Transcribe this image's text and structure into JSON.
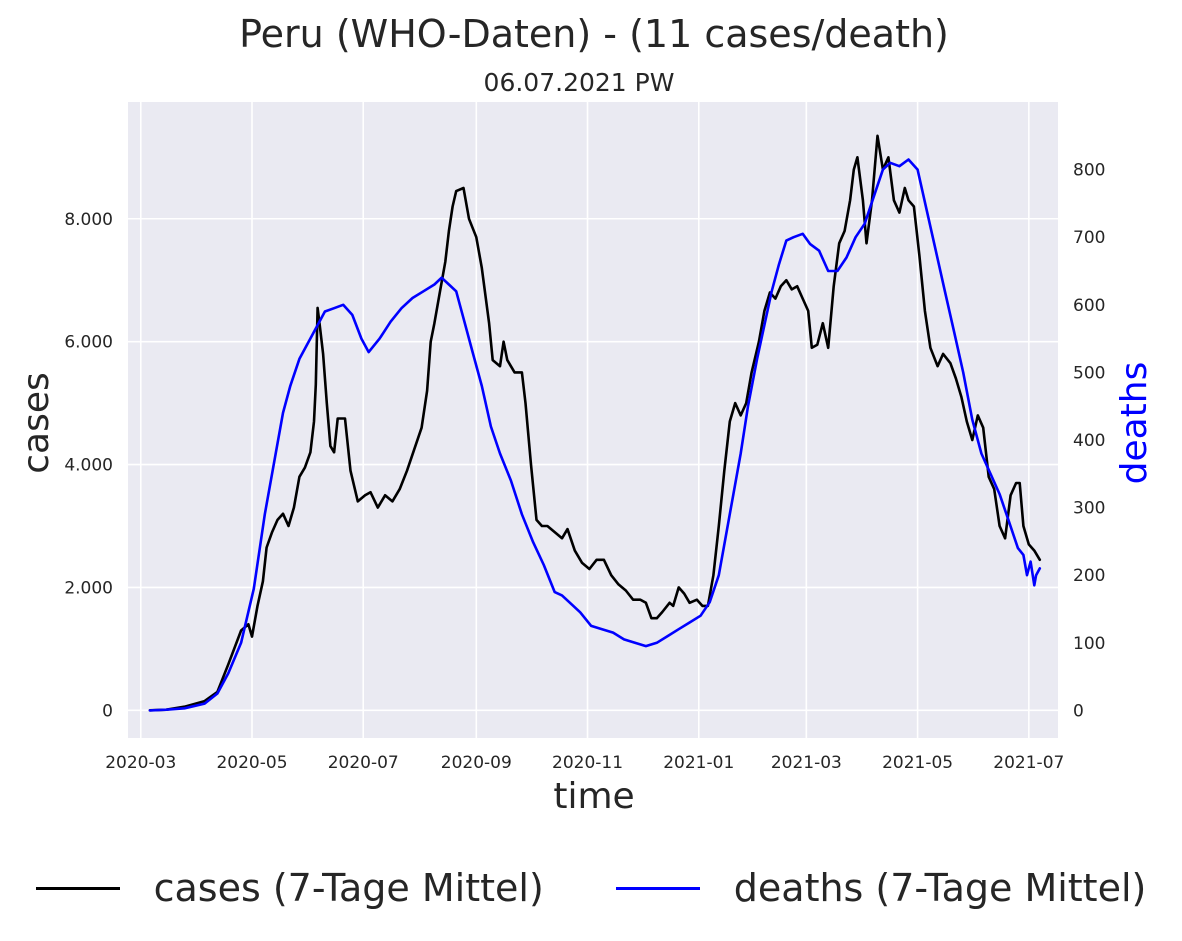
{
  "chart_data": {
    "type": "line",
    "title": "Peru (WHO-Daten) - (11 cases/death)",
    "subtitle": "06.07.2021 PW",
    "xlabel": "time",
    "ylabel_left": "cases",
    "ylabel_right": "deaths",
    "x_tick_labels": [
      "2020-03",
      "2020-05",
      "2020-07",
      "2020-09",
      "2020-11",
      "2021-01",
      "2021-03",
      "2021-05",
      "2021-07"
    ],
    "y_left_tick_labels": [
      "0",
      "2.000",
      "4.000",
      "6.000",
      "8.000"
    ],
    "y_left_ticks": [
      0,
      2000,
      4000,
      6000,
      8000
    ],
    "y_left_lim": [
      -450,
      9900
    ],
    "y_right_tick_labels": [
      "0",
      "100",
      "200",
      "300",
      "400",
      "500",
      "600",
      "700",
      "800"
    ],
    "y_right_ticks": [
      0,
      100,
      200,
      300,
      400,
      500,
      600,
      700,
      800
    ],
    "y_right_lim": [
      -40.9,
      900
    ],
    "x_lim": [
      "2020-02-23",
      "2021-07-17"
    ],
    "grid": true,
    "legend_position": "bottom-center",
    "series": [
      {
        "name": "cases (7-Tage Mittel)",
        "color": "#000000",
        "axis": "left",
        "points": [
          [
            "2020-03-06",
            0
          ],
          [
            "2020-03-15",
            10
          ],
          [
            "2020-03-25",
            60
          ],
          [
            "2020-04-05",
            150
          ],
          [
            "2020-04-12",
            300
          ],
          [
            "2020-04-18",
            750
          ],
          [
            "2020-04-25",
            1300
          ],
          [
            "2020-04-29",
            1400
          ],
          [
            "2020-05-01",
            1200
          ],
          [
            "2020-05-04",
            1700
          ],
          [
            "2020-05-07",
            2100
          ],
          [
            "2020-05-09",
            2650
          ],
          [
            "2020-05-12",
            2900
          ],
          [
            "2020-05-15",
            3100
          ],
          [
            "2020-05-18",
            3200
          ],
          [
            "2020-05-21",
            3000
          ],
          [
            "2020-05-24",
            3300
          ],
          [
            "2020-05-27",
            3800
          ],
          [
            "2020-05-30",
            3950
          ],
          [
            "2020-06-02",
            4200
          ],
          [
            "2020-06-04",
            4700
          ],
          [
            "2020-06-05",
            5300
          ],
          [
            "2020-06-06",
            6550
          ],
          [
            "2020-06-07",
            6300
          ],
          [
            "2020-06-09",
            5800
          ],
          [
            "2020-06-11",
            5000
          ],
          [
            "2020-06-13",
            4300
          ],
          [
            "2020-06-15",
            4200
          ],
          [
            "2020-06-17",
            4750
          ],
          [
            "2020-06-21",
            4750
          ],
          [
            "2020-06-24",
            3900
          ],
          [
            "2020-06-28",
            3400
          ],
          [
            "2020-07-02",
            3500
          ],
          [
            "2020-07-05",
            3550
          ],
          [
            "2020-07-09",
            3300
          ],
          [
            "2020-07-13",
            3500
          ],
          [
            "2020-07-17",
            3400
          ],
          [
            "2020-07-21",
            3600
          ],
          [
            "2020-07-25",
            3900
          ],
          [
            "2020-07-29",
            4250
          ],
          [
            "2020-08-02",
            4600
          ],
          [
            "2020-08-05",
            5200
          ],
          [
            "2020-08-07",
            6000
          ],
          [
            "2020-08-09",
            6300
          ],
          [
            "2020-08-12",
            6800
          ],
          [
            "2020-08-15",
            7300
          ],
          [
            "2020-08-17",
            7800
          ],
          [
            "2020-08-19",
            8200
          ],
          [
            "2020-08-21",
            8450
          ],
          [
            "2020-08-25",
            8500
          ],
          [
            "2020-08-28",
            8000
          ],
          [
            "2020-09-01",
            7700
          ],
          [
            "2020-09-04",
            7200
          ],
          [
            "2020-09-08",
            6300
          ],
          [
            "2020-09-10",
            5700
          ],
          [
            "2020-09-14",
            5600
          ],
          [
            "2020-09-16",
            6000
          ],
          [
            "2020-09-18",
            5700
          ],
          [
            "2020-09-22",
            5500
          ],
          [
            "2020-09-26",
            5500
          ],
          [
            "2020-09-28",
            5000
          ],
          [
            "2020-10-01",
            4000
          ],
          [
            "2020-10-04",
            3100
          ],
          [
            "2020-10-07",
            3000
          ],
          [
            "2020-10-10",
            3000
          ],
          [
            "2020-10-14",
            2900
          ],
          [
            "2020-10-18",
            2800
          ],
          [
            "2020-10-21",
            2950
          ],
          [
            "2020-10-25",
            2600
          ],
          [
            "2020-10-29",
            2400
          ],
          [
            "2020-11-02",
            2300
          ],
          [
            "2020-11-06",
            2450
          ],
          [
            "2020-11-10",
            2450
          ],
          [
            "2020-11-14",
            2200
          ],
          [
            "2020-11-18",
            2050
          ],
          [
            "2020-11-22",
            1950
          ],
          [
            "2020-11-26",
            1800
          ],
          [
            "2020-11-30",
            1800
          ],
          [
            "2020-12-03",
            1750
          ],
          [
            "2020-12-06",
            1500
          ],
          [
            "2020-12-09",
            1500
          ],
          [
            "2020-12-12",
            1600
          ],
          [
            "2020-12-16",
            1750
          ],
          [
            "2020-12-18",
            1700
          ],
          [
            "2020-12-21",
            2000
          ],
          [
            "2020-12-24",
            1900
          ],
          [
            "2020-12-27",
            1750
          ],
          [
            "2020-12-31",
            1800
          ],
          [
            "2021-01-03",
            1700
          ],
          [
            "2021-01-06",
            1700
          ],
          [
            "2021-01-09",
            2200
          ],
          [
            "2021-01-12",
            3000
          ],
          [
            "2021-01-15",
            3900
          ],
          [
            "2021-01-18",
            4700
          ],
          [
            "2021-01-21",
            5000
          ],
          [
            "2021-01-24",
            4800
          ],
          [
            "2021-01-27",
            5000
          ],
          [
            "2021-01-30",
            5500
          ],
          [
            "2021-02-03",
            6000
          ],
          [
            "2021-02-06",
            6500
          ],
          [
            "2021-02-09",
            6800
          ],
          [
            "2021-02-12",
            6700
          ],
          [
            "2021-02-15",
            6900
          ],
          [
            "2021-02-18",
            7000
          ],
          [
            "2021-02-21",
            6850
          ],
          [
            "2021-02-24",
            6900
          ],
          [
            "2021-02-27",
            6700
          ],
          [
            "2021-03-02",
            6500
          ],
          [
            "2021-03-04",
            5900
          ],
          [
            "2021-03-07",
            5950
          ],
          [
            "2021-03-10",
            6300
          ],
          [
            "2021-03-13",
            5900
          ],
          [
            "2021-03-16",
            6900
          ],
          [
            "2021-03-19",
            7600
          ],
          [
            "2021-03-22",
            7800
          ],
          [
            "2021-03-25",
            8300
          ],
          [
            "2021-03-27",
            8800
          ],
          [
            "2021-03-29",
            9000
          ],
          [
            "2021-04-01",
            8300
          ],
          [
            "2021-04-03",
            7600
          ],
          [
            "2021-04-06",
            8300
          ],
          [
            "2021-04-09",
            9350
          ],
          [
            "2021-04-12",
            8800
          ],
          [
            "2021-04-15",
            9000
          ],
          [
            "2021-04-18",
            8300
          ],
          [
            "2021-04-21",
            8100
          ],
          [
            "2021-04-24",
            8500
          ],
          [
            "2021-04-26",
            8300
          ],
          [
            "2021-04-29",
            8200
          ],
          [
            "2021-05-02",
            7400
          ],
          [
            "2021-05-05",
            6500
          ],
          [
            "2021-05-08",
            5900
          ],
          [
            "2021-05-12",
            5600
          ],
          [
            "2021-05-15",
            5800
          ],
          [
            "2021-05-19",
            5650
          ],
          [
            "2021-05-22",
            5400
          ],
          [
            "2021-05-25",
            5100
          ],
          [
            "2021-05-28",
            4700
          ],
          [
            "2021-05-31",
            4400
          ],
          [
            "2021-06-03",
            4800
          ],
          [
            "2021-06-06",
            4600
          ],
          [
            "2021-06-09",
            3800
          ],
          [
            "2021-06-12",
            3600
          ],
          [
            "2021-06-15",
            3000
          ],
          [
            "2021-06-18",
            2800
          ],
          [
            "2021-06-21",
            3500
          ],
          [
            "2021-06-24",
            3700
          ],
          [
            "2021-06-26",
            3700
          ],
          [
            "2021-06-28",
            3000
          ],
          [
            "2021-07-01",
            2700
          ],
          [
            "2021-07-04",
            2600
          ],
          [
            "2021-07-07",
            2450
          ]
        ]
      },
      {
        "name": "deaths (7-Tage Mittel)",
        "color": "#0000ff",
        "axis": "right",
        "points": [
          [
            "2020-03-06",
            0
          ],
          [
            "2020-03-15",
            1
          ],
          [
            "2020-03-25",
            3
          ],
          [
            "2020-04-05",
            10
          ],
          [
            "2020-04-12",
            25
          ],
          [
            "2020-04-18",
            55
          ],
          [
            "2020-04-25",
            100
          ],
          [
            "2020-05-02",
            180
          ],
          [
            "2020-05-08",
            290
          ],
          [
            "2020-05-14",
            380
          ],
          [
            "2020-05-18",
            440
          ],
          [
            "2020-05-22",
            480
          ],
          [
            "2020-05-27",
            520
          ],
          [
            "2020-06-01",
            545
          ],
          [
            "2020-06-06",
            570
          ],
          [
            "2020-06-10",
            590
          ],
          [
            "2020-06-15",
            595
          ],
          [
            "2020-06-20",
            600
          ],
          [
            "2020-06-25",
            585
          ],
          [
            "2020-06-30",
            550
          ],
          [
            "2020-07-04",
            530
          ],
          [
            "2020-07-10",
            550
          ],
          [
            "2020-07-16",
            575
          ],
          [
            "2020-07-22",
            595
          ],
          [
            "2020-07-28",
            610
          ],
          [
            "2020-08-03",
            620
          ],
          [
            "2020-08-09",
            630
          ],
          [
            "2020-08-13",
            640
          ],
          [
            "2020-08-17",
            630
          ],
          [
            "2020-08-21",
            620
          ],
          [
            "2020-08-25",
            580
          ],
          [
            "2020-08-30",
            530
          ],
          [
            "2020-09-04",
            480
          ],
          [
            "2020-09-09",
            420
          ],
          [
            "2020-09-14",
            380
          ],
          [
            "2020-09-20",
            340
          ],
          [
            "2020-09-26",
            290
          ],
          [
            "2020-10-02",
            250
          ],
          [
            "2020-10-08",
            215
          ],
          [
            "2020-10-14",
            175
          ],
          [
            "2020-10-18",
            170
          ],
          [
            "2020-10-22",
            160
          ],
          [
            "2020-10-28",
            145
          ],
          [
            "2020-11-03",
            125
          ],
          [
            "2020-11-09",
            120
          ],
          [
            "2020-11-15",
            115
          ],
          [
            "2020-11-21",
            105
          ],
          [
            "2020-11-27",
            100
          ],
          [
            "2020-12-03",
            95
          ],
          [
            "2020-12-09",
            100
          ],
          [
            "2020-12-15",
            110
          ],
          [
            "2020-12-21",
            120
          ],
          [
            "2020-12-27",
            130
          ],
          [
            "2021-01-02",
            140
          ],
          [
            "2021-01-07",
            160
          ],
          [
            "2021-01-12",
            200
          ],
          [
            "2021-01-16",
            260
          ],
          [
            "2021-01-20",
            320
          ],
          [
            "2021-01-24",
            380
          ],
          [
            "2021-01-28",
            450
          ],
          [
            "2021-02-02",
            520
          ],
          [
            "2021-02-06",
            570
          ],
          [
            "2021-02-10",
            620
          ],
          [
            "2021-02-14",
            660
          ],
          [
            "2021-02-18",
            695
          ],
          [
            "2021-02-22",
            700
          ],
          [
            "2021-02-27",
            705
          ],
          [
            "2021-03-03",
            690
          ],
          [
            "2021-03-08",
            680
          ],
          [
            "2021-03-13",
            650
          ],
          [
            "2021-03-18",
            650
          ],
          [
            "2021-03-23",
            670
          ],
          [
            "2021-03-28",
            700
          ],
          [
            "2021-04-02",
            720
          ],
          [
            "2021-04-07",
            760
          ],
          [
            "2021-04-12",
            800
          ],
          [
            "2021-04-16",
            810
          ],
          [
            "2021-04-21",
            805
          ],
          [
            "2021-04-26",
            815
          ],
          [
            "2021-05-01",
            800
          ],
          [
            "2021-05-06",
            740
          ],
          [
            "2021-05-11",
            680
          ],
          [
            "2021-05-16",
            620
          ],
          [
            "2021-05-21",
            560
          ],
          [
            "2021-05-26",
            500
          ],
          [
            "2021-05-31",
            430
          ],
          [
            "2021-06-05",
            380
          ],
          [
            "2021-06-10",
            350
          ],
          [
            "2021-06-15",
            320
          ],
          [
            "2021-06-20",
            280
          ],
          [
            "2021-06-25",
            240
          ],
          [
            "2021-06-28",
            230
          ],
          [
            "2021-06-30",
            200
          ],
          [
            "2021-07-02",
            220
          ],
          [
            "2021-07-04",
            185
          ],
          [
            "2021-07-05",
            200
          ],
          [
            "2021-07-07",
            210
          ]
        ]
      }
    ]
  }
}
